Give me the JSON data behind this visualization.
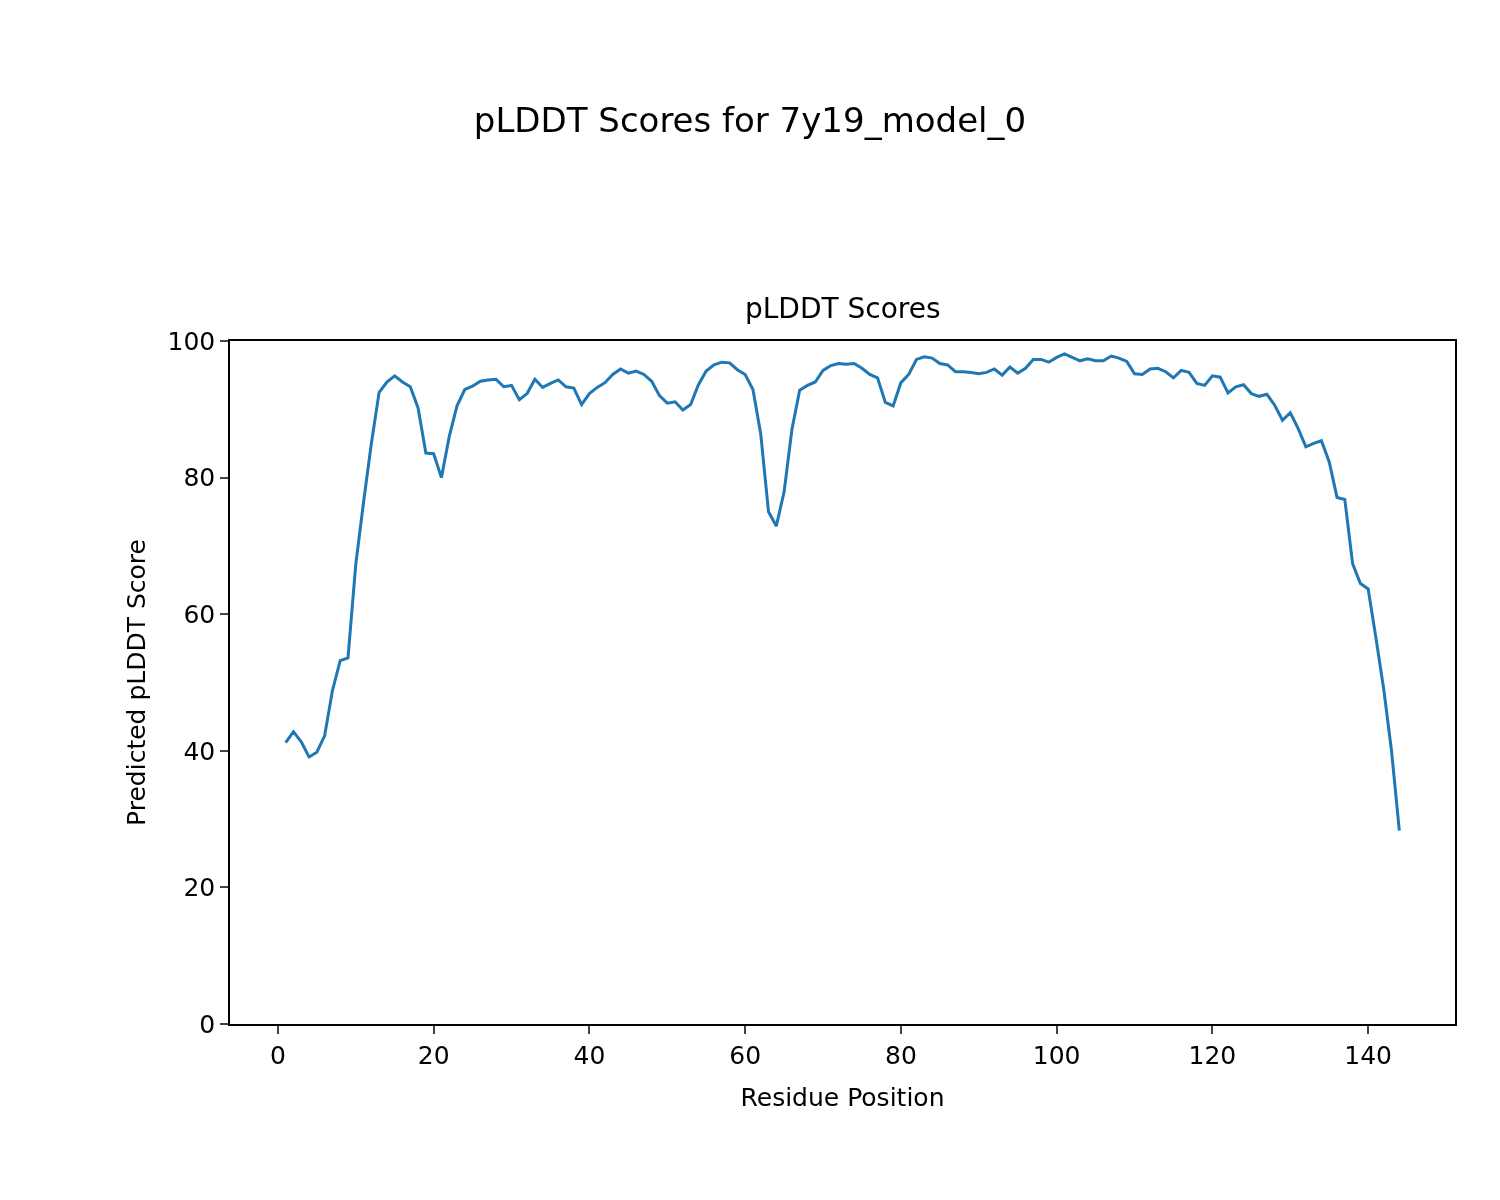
{
  "chart_data": {
    "type": "line",
    "title": "pLDDT Scores for 7y19_model_0",
    "subtitle": "pLDDT Scores",
    "xlabel": "Residue Position",
    "ylabel": "Predicted pLDDT Score",
    "x": [
      1,
      2,
      3,
      4,
      5,
      6,
      7,
      8,
      9,
      10,
      11,
      12,
      13,
      14,
      15,
      16,
      17,
      18,
      19,
      20,
      21,
      22,
      23,
      24,
      25,
      26,
      27,
      28,
      29,
      30,
      31,
      32,
      33,
      34,
      35,
      36,
      37,
      38,
      39,
      40,
      41,
      42,
      43,
      44,
      45,
      46,
      47,
      48,
      49,
      50,
      51,
      52,
      53,
      54,
      55,
      56,
      57,
      58,
      59,
      60,
      61,
      62,
      63,
      64,
      65,
      66,
      67,
      68,
      69,
      70,
      71,
      72,
      73,
      74,
      75,
      76,
      77,
      78,
      79,
      80,
      81,
      82,
      83,
      84,
      85,
      86,
      87,
      88,
      89,
      90,
      91,
      92,
      93,
      94,
      95,
      96,
      97,
      98,
      99,
      100,
      101,
      102,
      103,
      104,
      105,
      106,
      107,
      108,
      109,
      110,
      111,
      112,
      113,
      114,
      115,
      116,
      117,
      118,
      119,
      120,
      121,
      122,
      123,
      124,
      125,
      126,
      127,
      128,
      129,
      130,
      131,
      132,
      133,
      134,
      135,
      136,
      137,
      138,
      139,
      140,
      141,
      142,
      143,
      144
    ],
    "series": [
      {
        "color": "#1f77b4",
        "values": [
          41.2,
          42.8,
          41.3,
          39.1,
          39.8,
          42.2,
          48.8,
          53.2,
          53.6,
          67.3,
          76.4,
          85,
          92.5,
          94,
          94.9,
          94,
          93.3,
          90.2,
          83.6,
          83.5,
          80,
          86,
          90.5,
          92.9,
          93.4,
          94.1,
          94.3,
          94.4,
          93.3,
          93.5,
          91.4,
          92.3,
          94.4,
          93.2,
          93.8,
          94.3,
          93.3,
          93.1,
          90.7,
          92.3,
          93.2,
          93.9,
          95.1,
          95.9,
          95.3,
          95.6,
          95.1,
          94.1,
          92,
          90.9,
          91.1,
          89.9,
          90.7,
          93.6,
          95.6,
          96.5,
          96.9,
          96.8,
          95.8,
          95.1,
          92.9,
          86.4,
          75,
          72.9,
          77.9,
          87,
          92.8,
          93.5,
          94,
          95.7,
          96.4,
          96.7,
          96.6,
          96.7,
          96,
          95.1,
          94.6,
          91,
          90.5,
          93.9,
          95.1,
          97.3,
          97.7,
          97.5,
          96.7,
          96.5,
          95.5,
          95.5,
          95.4,
          95.2,
          95.4,
          95.9,
          95,
          96.2,
          95.3,
          96,
          97.3,
          97.3,
          96.9,
          97.6,
          98.1,
          97.6,
          97.1,
          97.4,
          97.1,
          97.1,
          97.8,
          97.5,
          97,
          95.2,
          95.1,
          95.9,
          96,
          95.5,
          94.6,
          95.7,
          95.4,
          93.8,
          93.5,
          94.9,
          94.7,
          92.4,
          93.3,
          93.6,
          92.3,
          91.9,
          92.2,
          90.6,
          88.4,
          89.5,
          87.2,
          84.5,
          85,
          85.4,
          82.3,
          77.1,
          76.8,
          67.4,
          64.5,
          63.7,
          56.5,
          49,
          40,
          28.3
        ]
      }
    ],
    "xlim": [
      -6.15,
      151.15
    ],
    "ylim": [
      0,
      100
    ],
    "xticks": [
      0,
      20,
      40,
      60,
      80,
      100,
      120,
      140
    ],
    "yticks": [
      0,
      20,
      40,
      60,
      80,
      100
    ],
    "legend": false,
    "marker": "none",
    "line_style": "solid"
  }
}
